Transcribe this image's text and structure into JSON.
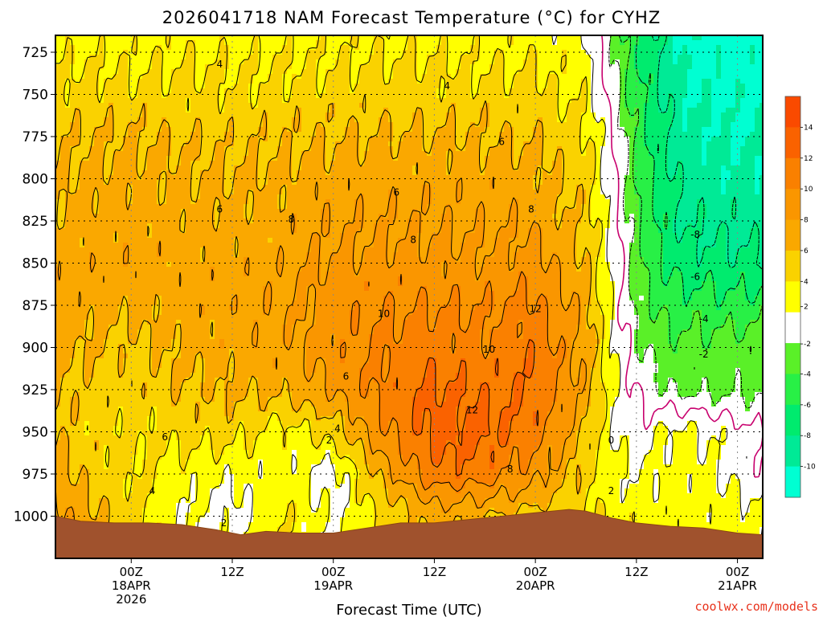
{
  "chart_data": {
    "type": "heatmap",
    "title": "2026041718 NAM Forecast Temperature (°C) for CYHZ",
    "xlabel": "Forecast Time (UTC)",
    "ylabel": "",
    "y_axis": {
      "reversed": true,
      "range": [
        1025,
        715
      ],
      "ticks": [
        725,
        750,
        775,
        800,
        825,
        850,
        875,
        900,
        925,
        950,
        975,
        1000
      ]
    },
    "x_axis": {
      "range_hours": [
        -3,
        81
      ],
      "ticks": [
        {
          "hour": 6,
          "lines": [
            "00Z",
            "18APR",
            "2026"
          ]
        },
        {
          "hour": 18,
          "lines": [
            "12Z"
          ]
        },
        {
          "hour": 30,
          "lines": [
            "00Z",
            "19APR"
          ]
        },
        {
          "hour": 42,
          "lines": [
            "12Z"
          ]
        },
        {
          "hour": 54,
          "lines": [
            "00Z",
            "20APR"
          ]
        },
        {
          "hour": 66,
          "lines": [
            "12Z"
          ]
        },
        {
          "hour": 78,
          "lines": [
            "00Z",
            "21APR"
          ]
        }
      ]
    },
    "grid": true,
    "colorbar": {
      "position": "right",
      "levels": [
        {
          "from": -12,
          "to": -10,
          "color": "#00ffd2"
        },
        {
          "from": -10,
          "to": -8,
          "color": "#00ea96"
        },
        {
          "from": -8,
          "to": -6,
          "color": "#00eb6e"
        },
        {
          "from": -6,
          "to": -4,
          "color": "#28f046"
        },
        {
          "from": -4,
          "to": -2,
          "color": "#5af028"
        },
        {
          "from": -2,
          "to": 2,
          "color": "#ffffff"
        },
        {
          "from": 2,
          "to": 4,
          "color": "#ffff00"
        },
        {
          "from": 4,
          "to": 6,
          "color": "#fad200"
        },
        {
          "from": 6,
          "to": 8,
          "color": "#faa800"
        },
        {
          "from": 8,
          "to": 10,
          "color": "#fa9600"
        },
        {
          "from": 10,
          "to": 12,
          "color": "#fa8000"
        },
        {
          "from": 12,
          "to": 14,
          "color": "#fa6200"
        },
        {
          "from": 14,
          "to": 16,
          "color": "#fa4a00"
        }
      ],
      "tick_labels": [
        "14",
        "12",
        "10",
        "8",
        "6",
        "4",
        "2",
        "-2",
        "-4",
        "-6",
        "-8",
        "-10"
      ]
    },
    "field": {
      "hours": [
        -3,
        0,
        6,
        12,
        18,
        24,
        30,
        36,
        42,
        48,
        54,
        60,
        63,
        66,
        69,
        72,
        78,
        81
      ],
      "levels_hpa": [
        715,
        725,
        750,
        775,
        800,
        825,
        850,
        875,
        900,
        925,
        950,
        975,
        1000,
        1025
      ],
      "temps_c": [
        [
          3.0,
          3.2,
          3.0,
          3.4,
          3.2,
          3.4,
          3.4,
          3.6,
          3.4,
          3.2,
          3.2,
          2.0,
          -2.0,
          -6.0,
          -8.5,
          -10.5,
          -11.0,
          -11.0
        ],
        [
          3.4,
          3.6,
          3.6,
          3.8,
          3.6,
          3.8,
          3.8,
          4.0,
          3.8,
          3.6,
          3.6,
          2.5,
          -1.5,
          -6.0,
          -8.5,
          -10.5,
          -11.0,
          -11.0
        ],
        [
          4.6,
          4.8,
          4.6,
          4.6,
          4.4,
          4.6,
          4.8,
          5.0,
          4.8,
          4.8,
          4.6,
          3.5,
          -1.0,
          -5.0,
          -8.0,
          -10.0,
          -10.5,
          -10.5
        ],
        [
          5.6,
          6.0,
          6.2,
          5.8,
          5.6,
          5.8,
          6.0,
          6.2,
          6.2,
          6.0,
          5.8,
          4.5,
          0.5,
          -4.5,
          -7.5,
          -9.5,
          -10.0,
          -10.0
        ],
        [
          6.0,
          6.4,
          6.6,
          6.4,
          6.2,
          6.4,
          6.8,
          7.0,
          7.2,
          7.0,
          6.8,
          5.0,
          1.0,
          -4.0,
          -7.0,
          -9.0,
          -9.5,
          -9.5
        ],
        [
          6.4,
          6.8,
          7.0,
          6.8,
          6.6,
          7.0,
          7.6,
          7.8,
          7.8,
          7.6,
          7.6,
          5.5,
          1.5,
          -3.5,
          -6.5,
          -8.5,
          -8.5,
          -9.0
        ],
        [
          7.0,
          7.2,
          7.2,
          7.0,
          7.0,
          7.4,
          8.4,
          8.6,
          8.6,
          8.4,
          9.0,
          6.0,
          1.8,
          -3.0,
          -6.0,
          -7.0,
          -7.5,
          -8.0
        ],
        [
          7.4,
          7.0,
          6.6,
          7.0,
          7.2,
          7.6,
          9.2,
          9.8,
          10.0,
          9.8,
          10.4,
          7.0,
          2.0,
          -2.5,
          -4.5,
          -5.0,
          -5.5,
          -5.0
        ],
        [
          7.0,
          6.2,
          5.4,
          6.6,
          7.0,
          7.4,
          9.0,
          10.4,
          11.2,
          10.4,
          11.6,
          7.5,
          2.4,
          -1.5,
          -3.0,
          -3.5,
          -3.0,
          -3.0
        ],
        [
          6.4,
          5.4,
          5.0,
          5.8,
          6.2,
          6.6,
          8.0,
          10.6,
          12.4,
          11.6,
          12.0,
          7.0,
          2.6,
          0.0,
          -2.0,
          -2.5,
          -2.5,
          -2.5
        ],
        [
          6.0,
          5.0,
          4.4,
          4.6,
          4.8,
          3.0,
          5.0,
          9.6,
          13.0,
          12.6,
          11.0,
          6.0,
          2.2,
          0.0,
          2.4,
          2.6,
          1.0,
          0.0
        ],
        [
          7.2,
          5.6,
          4.4,
          3.0,
          2.4,
          3.0,
          1.0,
          7.0,
          11.4,
          11.0,
          8.8,
          5.0,
          2.6,
          2.0,
          2.6,
          3.0,
          1.5,
          0.5
        ],
        [
          9.0,
          6.8,
          5.0,
          2.0,
          1.2,
          4.0,
          1.4,
          4.2,
          6.8,
          6.0,
          5.2,
          4.2,
          3.6,
          3.0,
          3.0,
          3.0,
          3.0,
          2.5
        ],
        [
          9.0,
          6.8,
          5.0,
          2.0,
          1.2,
          4.0,
          1.4,
          4.2,
          6.8,
          6.0,
          5.2,
          4.2,
          3.6,
          3.0,
          3.0,
          3.0,
          3.0,
          2.5
        ]
      ]
    },
    "contour_levels": [
      -8,
      -6,
      -4,
      -2,
      0,
      2,
      4,
      6,
      8,
      10,
      12
    ],
    "contour_labels": [
      {
        "text": "4",
        "hour": 16.5,
        "hpa": 734
      },
      {
        "text": "4",
        "hour": 43.5,
        "hpa": 747
      },
      {
        "text": "6",
        "hour": 50,
        "hpa": 780
      },
      {
        "text": "6",
        "hour": 37.5,
        "hpa": 810
      },
      {
        "text": "6",
        "hour": 16.5,
        "hpa": 820
      },
      {
        "text": "8",
        "hour": 25,
        "hpa": 826
      },
      {
        "text": "8",
        "hour": 53.5,
        "hpa": 820
      },
      {
        "text": "8",
        "hour": 39.5,
        "hpa": 838
      },
      {
        "text": "-8",
        "hour": 73,
        "hpa": 835
      },
      {
        "text": "-6",
        "hour": 73,
        "hpa": 860
      },
      {
        "text": "10",
        "hour": 36,
        "hpa": 882
      },
      {
        "text": "12",
        "hour": 54,
        "hpa": 879
      },
      {
        "text": "10",
        "hour": 48.5,
        "hpa": 903
      },
      {
        "text": "-4",
        "hour": 74,
        "hpa": 885
      },
      {
        "text": "-2",
        "hour": 74,
        "hpa": 906
      },
      {
        "text": "6",
        "hour": 31.5,
        "hpa": 919
      },
      {
        "text": "12",
        "hour": 46.5,
        "hpa": 939
      },
      {
        "text": "4",
        "hour": 30.5,
        "hpa": 950
      },
      {
        "text": "2",
        "hour": 29.5,
        "hpa": 957
      },
      {
        "text": "6",
        "hour": 10,
        "hpa": 955
      },
      {
        "text": "0",
        "hour": 63,
        "hpa": 957
      },
      {
        "text": "8",
        "hour": 51,
        "hpa": 974
      },
      {
        "text": "4",
        "hour": 8.5,
        "hpa": 987
      },
      {
        "text": "2",
        "hour": 63,
        "hpa": 987
      },
      {
        "text": "2",
        "hour": 17,
        "hpa": 1006
      }
    ],
    "terrain_hpa": [
      [
        -3,
        1000
      ],
      [
        0,
        1003
      ],
      [
        4,
        1004
      ],
      [
        8,
        1004
      ],
      [
        12,
        1005
      ],
      [
        16,
        1008
      ],
      [
        19,
        1011
      ],
      [
        22,
        1009
      ],
      [
        26,
        1010
      ],
      [
        30,
        1010
      ],
      [
        34,
        1007
      ],
      [
        38,
        1004
      ],
      [
        42,
        1004
      ],
      [
        46,
        1002
      ],
      [
        50,
        1000
      ],
      [
        54,
        998
      ],
      [
        58,
        996
      ],
      [
        60,
        997
      ],
      [
        63,
        1001
      ],
      [
        66,
        1004
      ],
      [
        70,
        1006
      ],
      [
        74,
        1007
      ],
      [
        78,
        1010
      ],
      [
        81,
        1011
      ]
    ]
  },
  "credit": "coolwx.com/models"
}
